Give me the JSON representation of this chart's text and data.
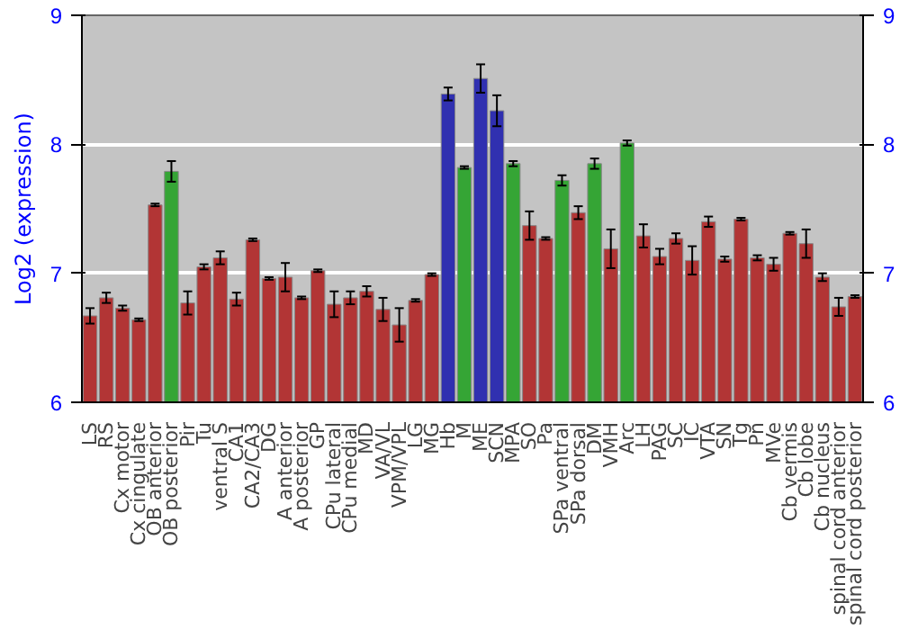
{
  "chart_data": {
    "type": "bar",
    "ylabel": "Log2 (expression)",
    "categories": [
      "LS",
      "RS",
      "Cx motor",
      "Cx cingulate",
      "OB anterior",
      "OB posterior",
      "Pir",
      "Tu",
      "ventral S",
      "CA1",
      "CA2/CA3",
      "DG",
      "A anterior",
      "A posterior",
      "GP",
      "CPu lateral",
      "CPu medial",
      "MD",
      "VA/VL",
      "VPM/VPL",
      "LG",
      "MG",
      "Hb",
      "M",
      "ME",
      "SCN",
      "MPA",
      "SO",
      "Pa",
      "SPa ventral",
      "SPa dorsal",
      "DM",
      "VMH",
      "Arc",
      "LH",
      "PAG",
      "SC",
      "IC",
      "VTA",
      "SN",
      "Tg",
      "Pn",
      "MVe",
      "Cb vermis",
      "Cb lobe",
      "Cb nucleus",
      "spinal cord anterior",
      "spinal cord posterior"
    ],
    "values": [
      6.67,
      6.81,
      6.73,
      6.64,
      7.53,
      7.79,
      6.77,
      7.05,
      7.12,
      6.8,
      7.26,
      6.96,
      6.97,
      6.81,
      7.02,
      6.76,
      6.81,
      6.86,
      6.72,
      6.6,
      6.79,
      6.99,
      8.39,
      7.82,
      8.51,
      8.26,
      7.85,
      7.37,
      7.27,
      7.72,
      7.47,
      7.85,
      7.19,
      8.01,
      7.29,
      7.13,
      7.27,
      7.1,
      7.4,
      7.11,
      7.42,
      7.12,
      7.07,
      7.31,
      7.23,
      6.97,
      6.74,
      6.82
    ],
    "errors": [
      0.06,
      0.04,
      0.02,
      0.01,
      0.01,
      0.08,
      0.09,
      0.02,
      0.05,
      0.05,
      0.01,
      0.01,
      0.11,
      0.01,
      0.01,
      0.1,
      0.05,
      0.04,
      0.09,
      0.13,
      0.01,
      0.01,
      0.05,
      0.01,
      0.11,
      0.12,
      0.02,
      0.11,
      0.01,
      0.04,
      0.05,
      0.04,
      0.15,
      0.02,
      0.09,
      0.06,
      0.04,
      0.11,
      0.04,
      0.02,
      0.01,
      0.02,
      0.05,
      0.01,
      0.11,
      0.03,
      0.07,
      0.01
    ],
    "colors": [
      "#b23535",
      "#b23535",
      "#b23535",
      "#b23535",
      "#b23535",
      "#35a535",
      "#b23535",
      "#b23535",
      "#b23535",
      "#b23535",
      "#b23535",
      "#b23535",
      "#b23535",
      "#b23535",
      "#b23535",
      "#b23535",
      "#b23535",
      "#b23535",
      "#b23535",
      "#b23535",
      "#b23535",
      "#b23535",
      "#3030b0",
      "#35a535",
      "#3030b0",
      "#3030b0",
      "#35a535",
      "#b23535",
      "#b23535",
      "#35a535",
      "#b23535",
      "#35a535",
      "#b23535",
      "#35a535",
      "#b23535",
      "#b23535",
      "#b23535",
      "#b23535",
      "#b23535",
      "#b23535",
      "#b23535",
      "#b23535",
      "#b23535",
      "#b23535",
      "#b23535",
      "#b23535",
      "#b23535",
      "#b23535"
    ],
    "ylim": [
      6,
      9
    ],
    "yticks": [
      6,
      7,
      8,
      9
    ],
    "y2lim": [
      6,
      9
    ],
    "y2ticks": [
      6,
      7,
      8,
      9
    ],
    "grid": "y"
  }
}
